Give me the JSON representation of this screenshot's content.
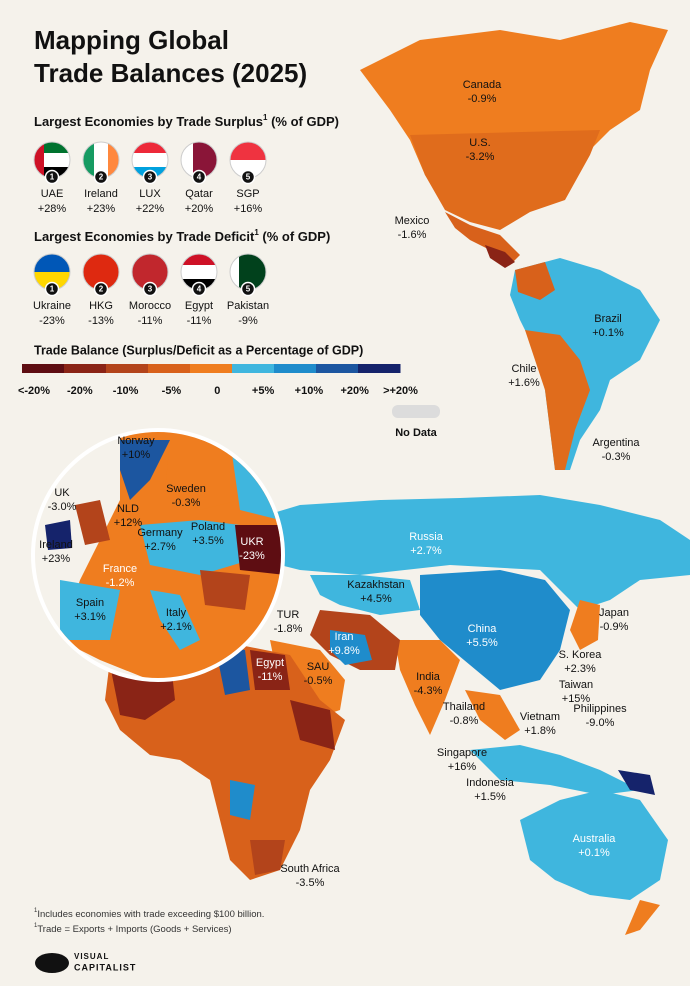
{
  "header": {
    "title_line1": "Mapping Global",
    "title_line2": "Trade Balances (2025)"
  },
  "surplus": {
    "title": "Largest Economies by Trade Surplus",
    "sup": "1",
    "unit": " (% of GDP)",
    "items": [
      {
        "rank": "1",
        "name": "UAE",
        "value": "+28%"
      },
      {
        "rank": "2",
        "name": "Ireland",
        "value": "+23%"
      },
      {
        "rank": "3",
        "name": "LUX",
        "value": "+22%"
      },
      {
        "rank": "4",
        "name": "Qatar",
        "value": "+20%"
      },
      {
        "rank": "5",
        "name": "SGP",
        "value": "+16%"
      }
    ]
  },
  "deficit": {
    "title": "Largest Economies by Trade Deficit",
    "sup": "1",
    "unit": " (% of GDP)",
    "items": [
      {
        "rank": "1",
        "name": "Ukraine",
        "value": "-23%"
      },
      {
        "rank": "2",
        "name": "HKG",
        "value": "-13%"
      },
      {
        "rank": "3",
        "name": "Morocco",
        "value": "-11%"
      },
      {
        "rank": "4",
        "name": "Egypt",
        "value": "-11%"
      },
      {
        "rank": "5",
        "name": "Pakistan",
        "value": "-9%"
      }
    ]
  },
  "legend": {
    "title": "Trade Balance (Surplus/Deficit as a Percentage of GDP)",
    "ticks": [
      "<-20%",
      "-20%",
      "-10%",
      "-5%",
      "0",
      "+5%",
      "+10%",
      "+20%",
      ">+20%"
    ],
    "colors": [
      "#5e0d12",
      "#8a2416",
      "#b3441b",
      "#d8611b",
      "#ef7d1f",
      "#3fb6de",
      "#1f8ccb",
      "#1c56a0",
      "#15236b"
    ],
    "no_data": "No Data"
  },
  "labels": [
    {
      "name": "Canada",
      "value": "-0.9%"
    },
    {
      "name": "U.S.",
      "value": "-3.2%"
    },
    {
      "name": "Mexico",
      "value": "-1.6%"
    },
    {
      "name": "Brazil",
      "value": "+0.1%"
    },
    {
      "name": "Chile",
      "value": "+1.6%"
    },
    {
      "name": "Argentina",
      "value": "-0.3%"
    },
    {
      "name": "Norway",
      "value": "+10%"
    },
    {
      "name": "UK",
      "value": "-3.0%"
    },
    {
      "name": "NLD",
      "value": "+12%"
    },
    {
      "name": "Sweden",
      "value": "-0.3%"
    },
    {
      "name": "Germany",
      "value": "+2.7%"
    },
    {
      "name": "Poland",
      "value": "+3.5%"
    },
    {
      "name": "UKR",
      "value": "-23%"
    },
    {
      "name": "Ireland",
      "value": "+23%"
    },
    {
      "name": "France",
      "value": "-1.2%"
    },
    {
      "name": "Spain",
      "value": "+3.1%"
    },
    {
      "name": "Italy",
      "value": "+2.1%"
    },
    {
      "name": "Russia",
      "value": "+2.7%"
    },
    {
      "name": "Kazakhstan",
      "value": "+4.5%"
    },
    {
      "name": "TUR",
      "value": "-1.8%"
    },
    {
      "name": "Iran",
      "value": "+9.8%"
    },
    {
      "name": "China",
      "value": "+5.5%"
    },
    {
      "name": "Japan",
      "value": "-0.9%"
    },
    {
      "name": "Egypt",
      "value": "-11%"
    },
    {
      "name": "SAU",
      "value": "-0.5%"
    },
    {
      "name": "India",
      "value": "-4.3%"
    },
    {
      "name": "S. Korea",
      "value": "+2.3%"
    },
    {
      "name": "Taiwan",
      "value": "+15%"
    },
    {
      "name": "Thailand",
      "value": "-0.8%"
    },
    {
      "name": "Vietnam",
      "value": "+1.8%"
    },
    {
      "name": "Philippines",
      "value": "-9.0%"
    },
    {
      "name": "Singapore",
      "value": "+16%"
    },
    {
      "name": "Indonesia",
      "value": "+1.5%"
    },
    {
      "name": "Australia",
      "value": "+0.1%"
    },
    {
      "name": "South Africa",
      "value": "-3.5%"
    }
  ],
  "footnotes": [
    "Includes economies with trade exceeding $100 billion.",
    "Trade = Exports + Imports (Goods + Services)"
  ],
  "footnote_marks": [
    "1",
    "1"
  ],
  "brand": {
    "line1": "VISUAL",
    "line2": "CAPITALIST"
  }
}
